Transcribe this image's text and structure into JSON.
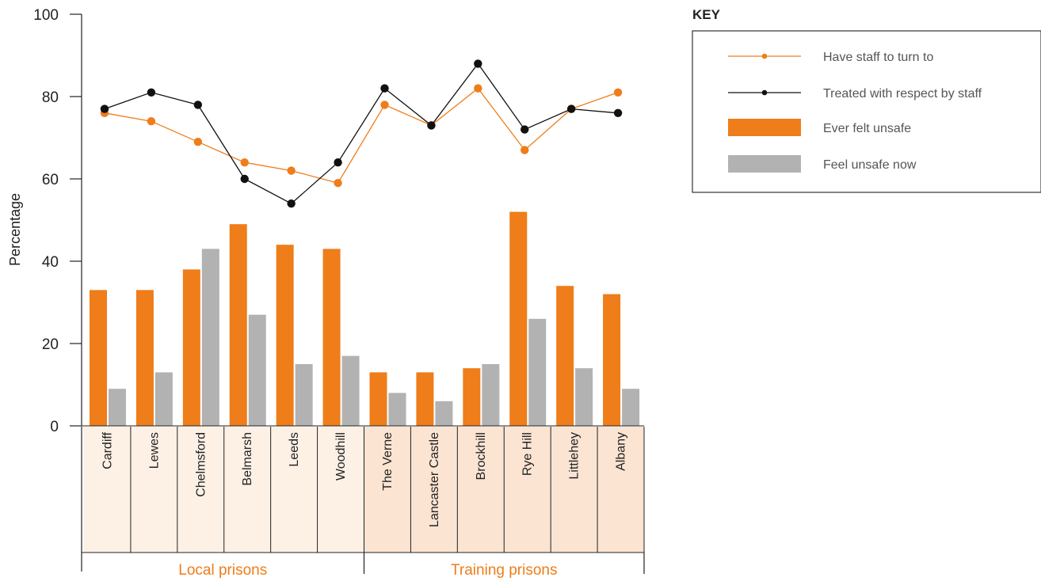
{
  "chart_data": {
    "type": "bar",
    "ylabel": "Percentage",
    "ylim": [
      0,
      100
    ],
    "yticks": [
      0,
      20,
      40,
      60,
      80,
      100
    ],
    "grid": false,
    "legend_placement": "top-right",
    "categories": [
      "Cardiff",
      "Lewes",
      "Chelmsford",
      "Belmarsh",
      "Leeds",
      "Woodhill",
      "The Verne",
      "Lancaster Castle",
      "Brockhill",
      "Rye Hill",
      "Littlehey",
      "Albany"
    ],
    "groups": [
      {
        "label": "Local prisons",
        "categories": [
          "Cardiff",
          "Lewes",
          "Chelmsford",
          "Belmarsh",
          "Leeds",
          "Woodhill"
        ],
        "color": "#fdf1e6"
      },
      {
        "label": "Training prisons",
        "categories": [
          "The Verne",
          "Lancaster Castle",
          "Brockhill",
          "Rye Hill",
          "Littlehey",
          "Albany"
        ],
        "color": "#fbe4d2"
      }
    ],
    "series": [
      {
        "name": "Have staff to turn to",
        "kind": "line",
        "color": "#ee7d1a",
        "values": [
          76,
          74,
          69,
          64,
          62,
          59,
          78,
          73,
          82,
          67,
          77,
          81
        ]
      },
      {
        "name": "Treated with respect by staff",
        "kind": "line",
        "color": "#111111",
        "values": [
          77,
          81,
          78,
          60,
          54,
          64,
          82,
          73,
          88,
          72,
          77,
          76
        ]
      },
      {
        "name": "Ever felt unsafe",
        "kind": "bar",
        "color": "#ee7d1a",
        "values": [
          33,
          33,
          38,
          49,
          44,
          43,
          13,
          13,
          14,
          52,
          34,
          32
        ]
      },
      {
        "name": "Feel unsafe now",
        "kind": "bar",
        "color": "#b2b2b2",
        "values": [
          9,
          13,
          43,
          27,
          15,
          17,
          8,
          6,
          15,
          26,
          14,
          9
        ]
      }
    ]
  },
  "legend": {
    "title": "KEY"
  },
  "colors": {
    "group_text": "#ee7d1a",
    "axis": "#222222",
    "legend_border": "#333333"
  }
}
